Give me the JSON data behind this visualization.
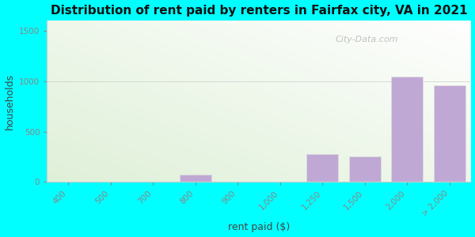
{
  "title": "Distribution of rent paid by renters in Fairfax city, VA in 2021",
  "xlabel": "rent paid ($)",
  "ylabel": "households",
  "categories": [
    "400",
    "500",
    "700",
    "800",
    "900",
    "1,000",
    "1,250",
    "1,500",
    "2,000",
    "> 2,000"
  ],
  "values": [
    5,
    5,
    5,
    70,
    5,
    5,
    275,
    255,
    1045,
    955
  ],
  "bar_colors": [
    "#c8dfc0",
    "#c8dfc0",
    "#c8dfc0",
    "#c0a8d4",
    "#c8dfc0",
    "#c8dfc0",
    "#c0a8d4",
    "#c0a8d4",
    "#c0a8d4",
    "#c0a8d4"
  ],
  "ylim": [
    0,
    1600
  ],
  "yticks": [
    0,
    500,
    1000,
    1500
  ],
  "background_color": "#00ffff",
  "plot_bg_color": "#dff0d8",
  "watermark": "City-Data.com",
  "title_fontsize": 11,
  "axis_label_fontsize": 9,
  "tick_fontsize": 7.5,
  "bar_width": 0.75
}
